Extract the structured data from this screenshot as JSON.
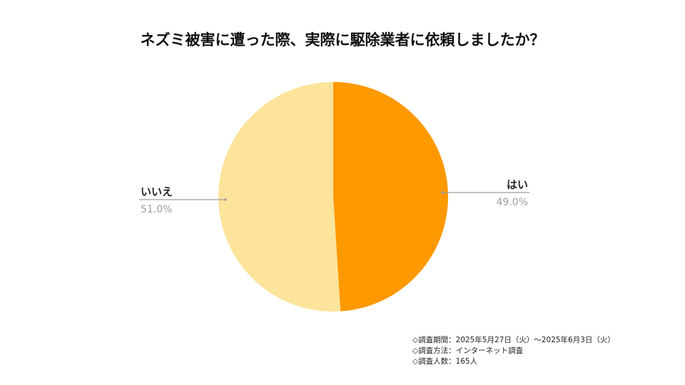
{
  "chart_data": {
    "type": "pie",
    "title": "ネズミ被害に遭った際、実際に駆除業者に依頼しましたか？",
    "slices": [
      {
        "label": "はい",
        "value": 49.0,
        "value_label": "49.0%",
        "color": "#ff9900"
      },
      {
        "label": "いいえ",
        "value": 51.0,
        "value_label": "51.0%",
        "color": "#fde49b"
      }
    ],
    "start": "top, clockwise",
    "leader_line_color": "#9e9e9e"
  },
  "notes": {
    "period": "◇調査期間：2025年5月27日（火）〜2025年6月3日（火）",
    "method": "◇調査方法：インターネット調査",
    "respondents": "◇調査人数：165人"
  }
}
